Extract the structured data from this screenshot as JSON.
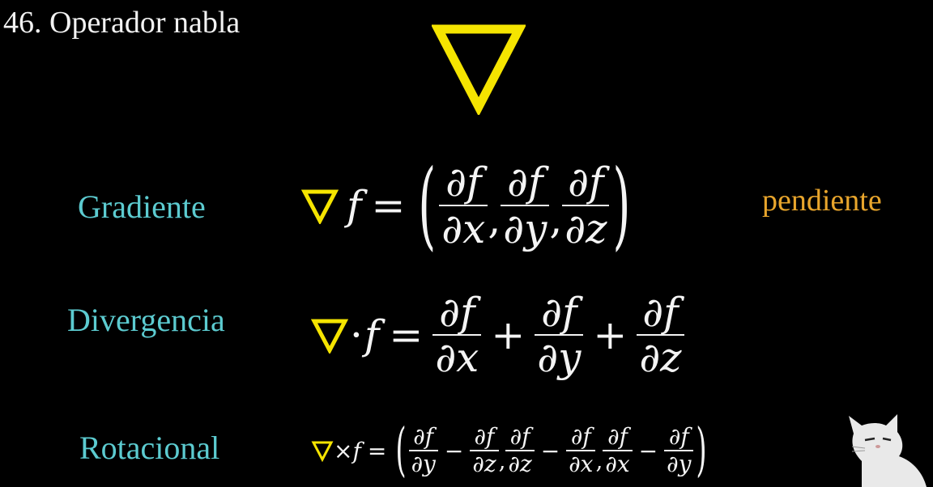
{
  "title": "46. Operador nabla",
  "colors": {
    "nabla": "#f5e400",
    "label": "#5ccbd0",
    "pendiente": "#e8a52c",
    "math": "#f4f4f4",
    "background": "#000000"
  },
  "gradient": {
    "label": "Gradiente",
    "f": "f",
    "equals": "=",
    "partials": [
      {
        "num": "∂f",
        "den": "∂x"
      },
      {
        "num": "∂f",
        "den": "∂y"
      },
      {
        "num": "∂f",
        "den": "∂z"
      }
    ],
    "comma": ",",
    "lparen": "(",
    "rparen": ")",
    "note": "pendiente"
  },
  "divergence": {
    "label": "Divergencia",
    "dot": "·",
    "f": "f",
    "equals": "=",
    "plus": "+",
    "partials": [
      {
        "num": "∂f",
        "den": "∂x"
      },
      {
        "num": "∂f",
        "den": "∂y"
      },
      {
        "num": "∂f",
        "den": "∂z"
      }
    ]
  },
  "rotational": {
    "label": "Rotacional",
    "times": "×",
    "f": "f",
    "equals": "=",
    "minus": "−",
    "comma": ",",
    "lparen": "(",
    "rparen": ")",
    "partials": [
      {
        "num": "∂f",
        "den": "∂y"
      },
      {
        "num": "∂f",
        "den": "∂z"
      },
      {
        "num": "∂f",
        "den": "∂z"
      },
      {
        "num": "∂f",
        "den": "∂x"
      },
      {
        "num": "∂f",
        "den": "∂x"
      },
      {
        "num": "∂f",
        "den": "∂y"
      }
    ]
  },
  "icons": {
    "big_nabla": "nabla-icon",
    "mascot": "cat-mascot-icon"
  }
}
